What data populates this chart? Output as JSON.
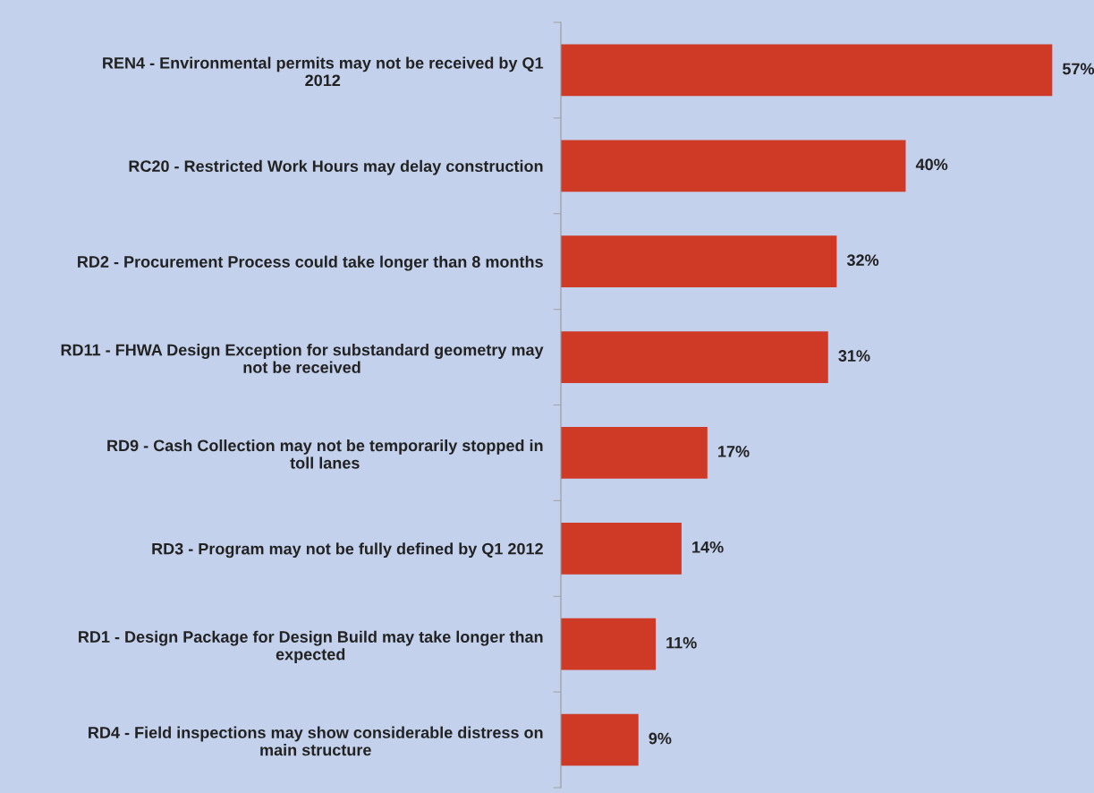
{
  "chart_data": {
    "type": "bar",
    "orientation": "horizontal",
    "categories": [
      "REN4 - Environmental permits may not be received by Q1 2012",
      "RC20 - Restricted Work Hours may delay construction",
      "RD2 - Procurement Process could take longer than 8 months",
      "RD11 - FHWA Design Exception for substandard geometry may not be received",
      "RD9 - Cash Collection may not be temporarily stopped in toll lanes",
      "RD3 - Program may not be fully defined by Q1 2012",
      "RD1 - Design Package for Design Build may take longer than expected",
      "RD4 - Field inspections may show considerable distress on main structure"
    ],
    "values": [
      57,
      40,
      32,
      31,
      17,
      14,
      11,
      9
    ],
    "value_labels": [
      "57%",
      "40%",
      "32%",
      "31%",
      "17%",
      "14%",
      "11%",
      "9%"
    ],
    "color": "#cf3a27",
    "grid": false,
    "legend": false
  }
}
